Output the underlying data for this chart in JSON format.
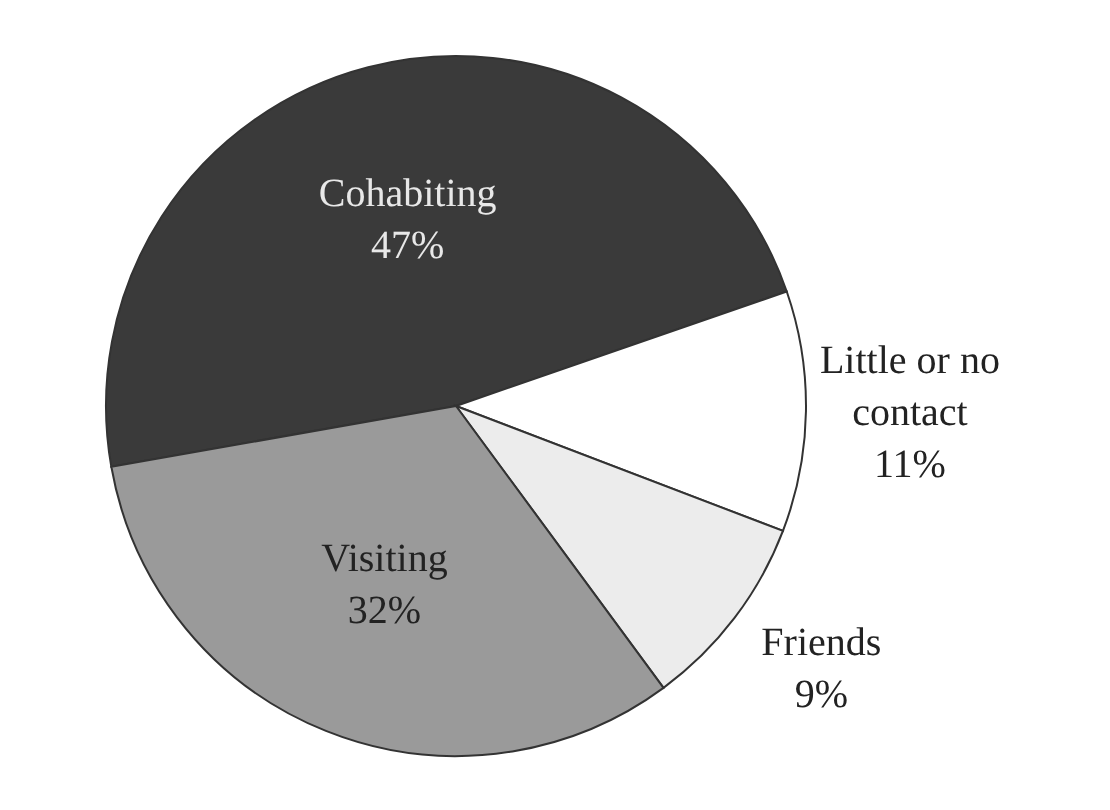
{
  "chart_data": {
    "type": "pie",
    "categories": [
      "Cohabiting",
      "Little or no contact",
      "Friends",
      "Visiting"
    ],
    "values": [
      47,
      11,
      9,
      32
    ],
    "value_labels": [
      "47%",
      "11%",
      "9%",
      "32%"
    ],
    "colors": [
      "#3a3a3a",
      "#ffffff",
      "#ececec",
      "#9a9a9a"
    ]
  }
}
